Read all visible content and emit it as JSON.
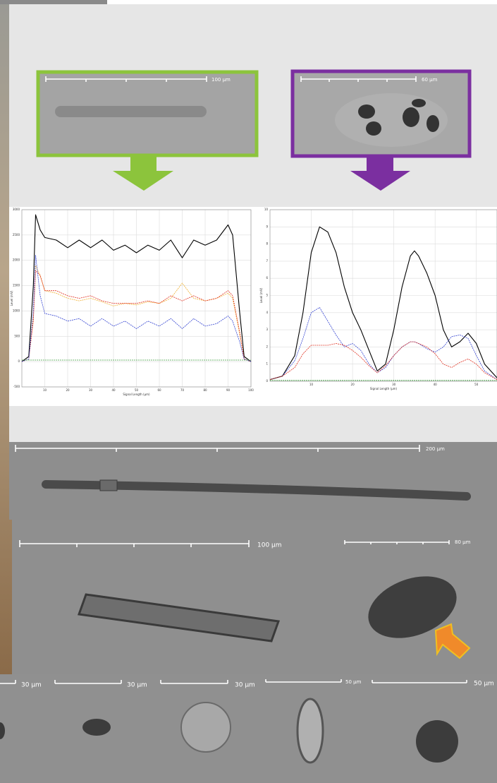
{
  "scale_bars": [
    "100 µm",
    "60 µm",
    "200 µm",
    "100 µm",
    "80 µm",
    "30 µm",
    "30 µm",
    "30 µm",
    "50 µm",
    "50 µm"
  ],
  "chart_data": [
    {
      "type": "line",
      "x_label": "Signal Length (µm)",
      "y_label": "Level (mV)",
      "x": [
        0,
        3,
        5,
        6,
        8,
        10,
        15,
        20,
        25,
        30,
        35,
        40,
        45,
        50,
        55,
        60,
        65,
        70,
        75,
        80,
        85,
        90,
        92,
        95,
        97,
        100
      ],
      "series": [
        {
          "color": "#000000",
          "values": [
            0,
            100,
            1500,
            2900,
            2600,
            2450,
            2400,
            2250,
            2400,
            2250,
            2400,
            2200,
            2300,
            2150,
            2300,
            2200,
            2400,
            2050,
            2400,
            2300,
            2400,
            2700,
            2500,
            1000,
            100,
            0
          ]
        },
        {
          "color": "#f0b030",
          "values": [
            0,
            50,
            900,
            1900,
            1700,
            1400,
            1350,
            1250,
            1200,
            1250,
            1180,
            1100,
            1150,
            1120,
            1180,
            1150,
            1250,
            1550,
            1250,
            1200,
            1250,
            1350,
            1250,
            550,
            50,
            0
          ]
        },
        {
          "color": "#e03020",
          "values": [
            0,
            50,
            800,
            1800,
            1700,
            1400,
            1400,
            1300,
            1250,
            1300,
            1200,
            1150,
            1150,
            1150,
            1200,
            1150,
            1300,
            1200,
            1300,
            1200,
            1250,
            1400,
            1300,
            600,
            50,
            0
          ]
        },
        {
          "color": "#3040d0",
          "values": [
            0,
            50,
            1000,
            2100,
            1300,
            950,
            900,
            800,
            850,
            700,
            850,
            700,
            800,
            650,
            800,
            700,
            850,
            650,
            850,
            700,
            750,
            900,
            800,
            400,
            50,
            0
          ]
        },
        {
          "color": "#40a040",
          "values": [
            30,
            30,
            30,
            30,
            30,
            30,
            30,
            30,
            30,
            30,
            30,
            30,
            30,
            30,
            30,
            30,
            30,
            30,
            30,
            30,
            30,
            30,
            30,
            30,
            30,
            30
          ]
        }
      ],
      "xlim": [
        0,
        100
      ],
      "xticks": [
        10,
        20,
        30,
        40,
        50,
        60,
        70,
        80,
        90,
        100
      ],
      "ylim": [
        -500,
        3000
      ],
      "yticks": [
        -500,
        0,
        500,
        1000,
        1500,
        2000,
        2500,
        3000
      ],
      "grid": true
    },
    {
      "type": "line",
      "x_label": "Signal Length (µm)",
      "y_label": "Level (mV)",
      "x": [
        0,
        3,
        6,
        8,
        10,
        12,
        14,
        16,
        18,
        20,
        22,
        24,
        26,
        28,
        30,
        32,
        34,
        35,
        36,
        38,
        40,
        42,
        44,
        46,
        48,
        50,
        52,
        55
      ],
      "series": [
        {
          "color": "#000000",
          "values": [
            0.1,
            0.3,
            1.5,
            4,
            7.5,
            9,
            8.7,
            7.5,
            5.5,
            4,
            3,
            1.8,
            0.6,
            1,
            3,
            5.5,
            7.3,
            7.6,
            7.3,
            6.3,
            5,
            3,
            2,
            2.3,
            2.8,
            2.2,
            1,
            0.2
          ]
        },
        {
          "color": "#3040d0",
          "values": [
            0.1,
            0.3,
            1.2,
            2.5,
            4,
            4.3,
            3.5,
            2.7,
            2,
            2.2,
            1.8,
            1,
            0.5,
            0.8,
            1.5,
            2,
            2.3,
            2.3,
            2.2,
            1.9,
            1.7,
            2,
            2.6,
            2.7,
            2.5,
            1.5,
            0.6,
            0.1
          ]
        },
        {
          "color": "#e03020",
          "values": [
            0.1,
            0.3,
            0.8,
            1.6,
            2.1,
            2.1,
            2.1,
            2.2,
            2.1,
            1.8,
            1.4,
            0.9,
            0.5,
            0.9,
            1.5,
            2,
            2.3,
            2.3,
            2.2,
            2,
            1.6,
            1,
            0.8,
            1.1,
            1.3,
            1,
            0.5,
            0.1
          ]
        },
        {
          "color": "#40a040",
          "values": [
            0.05,
            0.05,
            0.05,
            0.05,
            0.05,
            0.05,
            0.05,
            0.05,
            0.05,
            0.05,
            0.05,
            0.05,
            0.05,
            0.05,
            0.05,
            0.05,
            0.05,
            0.05,
            0.05,
            0.05,
            0.05,
            0.05,
            0.05,
            0.05,
            0.05,
            0.05,
            0.05,
            0.05
          ]
        }
      ],
      "xlim": [
        0,
        55
      ],
      "xticks": [
        10,
        20,
        30,
        40,
        50
      ],
      "ylim": [
        0,
        10
      ],
      "yticks": [
        0,
        1,
        2,
        3,
        4,
        5,
        6,
        7,
        8,
        9,
        10
      ],
      "grid": true
    }
  ]
}
